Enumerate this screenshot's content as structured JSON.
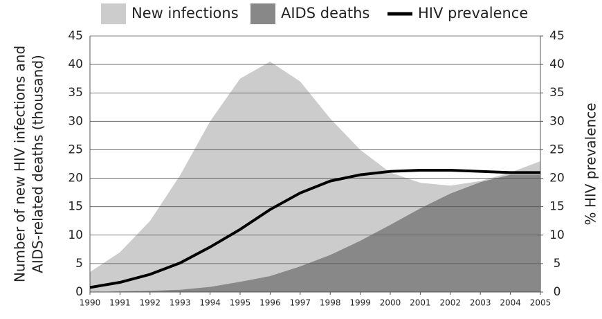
{
  "chart_data": {
    "type": "area_line",
    "x": [
      1990,
      1991,
      1992,
      1993,
      1994,
      1995,
      1996,
      1997,
      1998,
      1999,
      2000,
      2001,
      2002,
      2003,
      2004,
      2005
    ],
    "series": [
      {
        "name": "New infections",
        "color": "#cccccc",
        "kind": "area",
        "values": [
          3.5,
          7,
          12.5,
          20.5,
          30,
          37.5,
          40.5,
          37,
          30.5,
          25,
          21,
          19.2,
          18.7,
          19.5,
          21,
          23
        ]
      },
      {
        "name": "AIDS deaths",
        "color": "#888888",
        "kind": "area",
        "values": [
          0,
          0.1,
          0.2,
          0.4,
          0.9,
          1.8,
          2.8,
          4.5,
          6.5,
          9,
          11.8,
          14.7,
          17.3,
          19.3,
          20.6,
          20.6
        ]
      },
      {
        "name": "HIV prevalence",
        "color": "#000000",
        "kind": "line",
        "axis": "y2",
        "values": [
          0.8,
          1.7,
          3.1,
          5.1,
          7.9,
          11,
          14.5,
          17.4,
          19.5,
          20.6,
          21.2,
          21.4,
          21.4,
          21.2,
          21,
          21
        ]
      }
    ],
    "xlim": [
      1990,
      2005
    ],
    "xticks": [
      1990,
      1991,
      1992,
      1993,
      1994,
      1995,
      1996,
      1997,
      1998,
      1999,
      2000,
      2001,
      2002,
      2003,
      2004,
      2005
    ],
    "ylim": [
      0,
      45
    ],
    "yticks": [
      0,
      5,
      10,
      15,
      20,
      25,
      30,
      35,
      40,
      45
    ],
    "y2lim": [
      0,
      45
    ],
    "y2ticks": [
      0,
      5,
      10,
      15,
      20,
      25,
      30,
      35,
      40,
      45
    ],
    "y_label": [
      "Number of new HIV infections and",
      "AIDS-related deaths (thousand)"
    ],
    "y2_label": "% HIV prevalence",
    "grid": true
  }
}
